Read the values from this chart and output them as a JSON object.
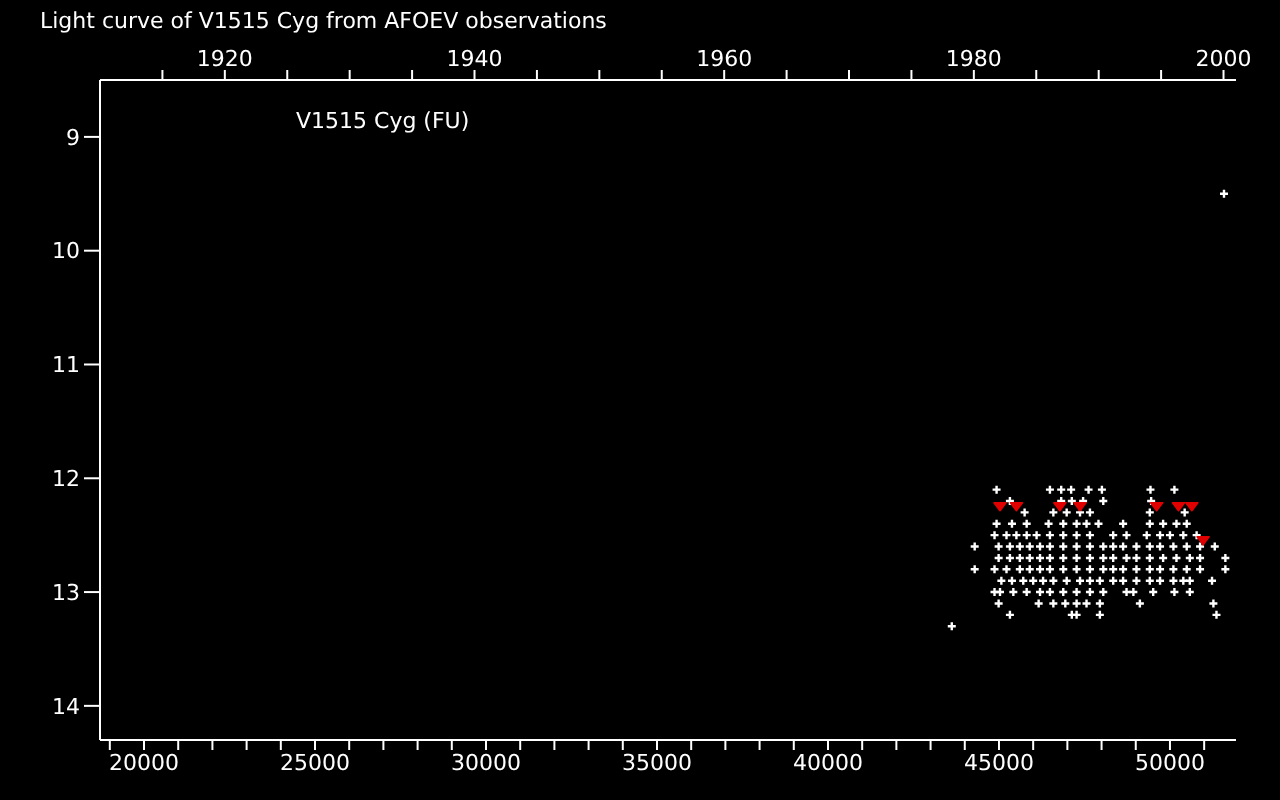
{
  "chart_data": {
    "type": "scatter",
    "title": "Light curve of V1515 Cyg from AFOEV observations",
    "annotations": [
      "V1515 Cyg (FU)"
    ],
    "marker": "cross",
    "xlim": [
      18713,
      51931
    ],
    "xticks": [
      {
        "value": 19000,
        "label": null
      },
      {
        "value": 20000,
        "label": "20000"
      },
      {
        "value": 21000,
        "label": null
      },
      {
        "value": 22000,
        "label": null
      },
      {
        "value": 23000,
        "label": null
      },
      {
        "value": 24000,
        "label": null
      },
      {
        "value": 25000,
        "label": "25000"
      },
      {
        "value": 26000,
        "label": null
      },
      {
        "value": 27000,
        "label": null
      },
      {
        "value": 28000,
        "label": null
      },
      {
        "value": 29000,
        "label": null
      },
      {
        "value": 30000,
        "label": "30000"
      },
      {
        "value": 31000,
        "label": null
      },
      {
        "value": 32000,
        "label": null
      },
      {
        "value": 33000,
        "label": null
      },
      {
        "value": 34000,
        "label": null
      },
      {
        "value": 35000,
        "label": "35000"
      },
      {
        "value": 36000,
        "label": null
      },
      {
        "value": 37000,
        "label": null
      },
      {
        "value": 38000,
        "label": null
      },
      {
        "value": 39000,
        "label": null
      },
      {
        "value": 40000,
        "label": "40000"
      },
      {
        "value": 41000,
        "label": null
      },
      {
        "value": 42000,
        "label": null
      },
      {
        "value": 43000,
        "label": null
      },
      {
        "value": 44000,
        "label": null
      },
      {
        "value": 45000,
        "label": "45000"
      },
      {
        "value": 46000,
        "label": null
      },
      {
        "value": 47000,
        "label": null
      },
      {
        "value": 48000,
        "label": null
      },
      {
        "value": 49000,
        "label": null
      },
      {
        "value": 50000,
        "label": "50000"
      },
      {
        "value": 51000,
        "label": null
      }
    ],
    "x2lim": [
      1910,
      2001
    ],
    "x2ticks": [
      {
        "value": 1915,
        "label": null
      },
      1920,
      {
        "value": 1925,
        "label": null
      },
      {
        "value": 1930,
        "label": null
      },
      {
        "value": 1935,
        "label": null
      },
      1940,
      {
        "value": 1945,
        "label": null
      },
      {
        "value": 1950,
        "label": null
      },
      {
        "value": 1955,
        "label": null
      },
      1960,
      {
        "value": 1965,
        "label": null
      },
      {
        "value": 1970,
        "label": null
      },
      {
        "value": 1975,
        "label": null
      },
      1980,
      {
        "value": 1985,
        "label": null
      },
      {
        "value": 1990,
        "label": null
      },
      {
        "value": 1995,
        "label": null
      },
      2000
    ],
    "ylim": [
      14.3,
      8.5
    ],
    "yticks": [
      9,
      10,
      11,
      12,
      13,
      14
    ],
    "series": [
      {
        "color": "#ffffff",
        "x": [
          44930,
          46490,
          46820,
          47110,
          47620,
          48010,
          49430,
          50130,
          45320,
          46820,
          47130,
          47460,
          48050,
          49450,
          45750,
          46590,
          46980,
          47370,
          47660,
          49410,
          50430,
          44930,
          45380,
          45810,
          46450,
          46880,
          47270,
          47560,
          47910,
          48630,
          49410,
          49800,
          50190,
          50490,
          44870,
          45220,
          45510,
          45810,
          46100,
          46490,
          46880,
          47270,
          47660,
          48340,
          48730,
          49320,
          49710,
          50000,
          50390,
          50780,
          44290,
          44990,
          45320,
          45610,
          45900,
          46200,
          46490,
          46880,
          47270,
          47660,
          48050,
          48340,
          48630,
          49020,
          49410,
          49710,
          50100,
          50490,
          50880,
          51310,
          44990,
          45320,
          45610,
          45900,
          46200,
          46490,
          46880,
          47270,
          47660,
          48050,
          48340,
          48730,
          49020,
          49410,
          49800,
          50190,
          50580,
          50880,
          51620,
          44290,
          44870,
          45220,
          45610,
          45900,
          46200,
          46490,
          46880,
          47270,
          47660,
          48050,
          48340,
          48630,
          49020,
          49410,
          49710,
          50100,
          50490,
          50880,
          51620,
          45070,
          45380,
          45710,
          46000,
          46290,
          46590,
          46980,
          47370,
          47660,
          47950,
          48340,
          48630,
          49020,
          49410,
          49710,
          50100,
          50390,
          50580,
          51230,
          44870,
          45030,
          45420,
          45810,
          46200,
          46490,
          46880,
          47270,
          47660,
          48050,
          48730,
          48930,
          49510,
          50130,
          50580,
          44990,
          46160,
          46590,
          46940,
          47270,
          47560,
          47950,
          49120,
          51270,
          45320,
          47130,
          47270,
          47950,
          51360,
          43620,
          51580
        ],
        "values": [
          12.1,
          12.1,
          12.1,
          12.1,
          12.1,
          12.1,
          12.1,
          12.1,
          12.2,
          12.2,
          12.2,
          12.2,
          12.2,
          12.2,
          12.3,
          12.3,
          12.3,
          12.3,
          12.3,
          12.3,
          12.3,
          12.4,
          12.4,
          12.4,
          12.4,
          12.4,
          12.4,
          12.4,
          12.4,
          12.4,
          12.4,
          12.4,
          12.4,
          12.4,
          12.5,
          12.5,
          12.5,
          12.5,
          12.5,
          12.5,
          12.5,
          12.5,
          12.5,
          12.5,
          12.5,
          12.5,
          12.5,
          12.5,
          12.5,
          12.5,
          12.6,
          12.6,
          12.6,
          12.6,
          12.6,
          12.6,
          12.6,
          12.6,
          12.6,
          12.6,
          12.6,
          12.6,
          12.6,
          12.6,
          12.6,
          12.6,
          12.6,
          12.6,
          12.6,
          12.6,
          12.7,
          12.7,
          12.7,
          12.7,
          12.7,
          12.7,
          12.7,
          12.7,
          12.7,
          12.7,
          12.7,
          12.7,
          12.7,
          12.7,
          12.7,
          12.7,
          12.7,
          12.7,
          12.7,
          12.8,
          12.8,
          12.8,
          12.8,
          12.8,
          12.8,
          12.8,
          12.8,
          12.8,
          12.8,
          12.8,
          12.8,
          12.8,
          12.8,
          12.8,
          12.8,
          12.8,
          12.8,
          12.8,
          12.8,
          12.9,
          12.9,
          12.9,
          12.9,
          12.9,
          12.9,
          12.9,
          12.9,
          12.9,
          12.9,
          12.9,
          12.9,
          12.9,
          12.9,
          12.9,
          12.9,
          12.9,
          12.9,
          12.9,
          13.0,
          13.0,
          13.0,
          13.0,
          13.0,
          13.0,
          13.0,
          13.0,
          13.0,
          13.0,
          13.0,
          13.0,
          13.0,
          13.0,
          13.0,
          13.1,
          13.1,
          13.1,
          13.1,
          13.1,
          13.1,
          13.1,
          13.1,
          13.1,
          13.2,
          13.2,
          13.2,
          13.2,
          13.2,
          13.3,
          9.5
        ]
      },
      {
        "color": "#e00000",
        "marker": "triangle",
        "x": [
          45030,
          45510,
          46780,
          47370,
          49610,
          50250,
          50640,
          50970
        ],
        "values": [
          12.25,
          12.25,
          12.25,
          12.25,
          12.25,
          12.25,
          12.25,
          12.55
        ]
      }
    ]
  }
}
